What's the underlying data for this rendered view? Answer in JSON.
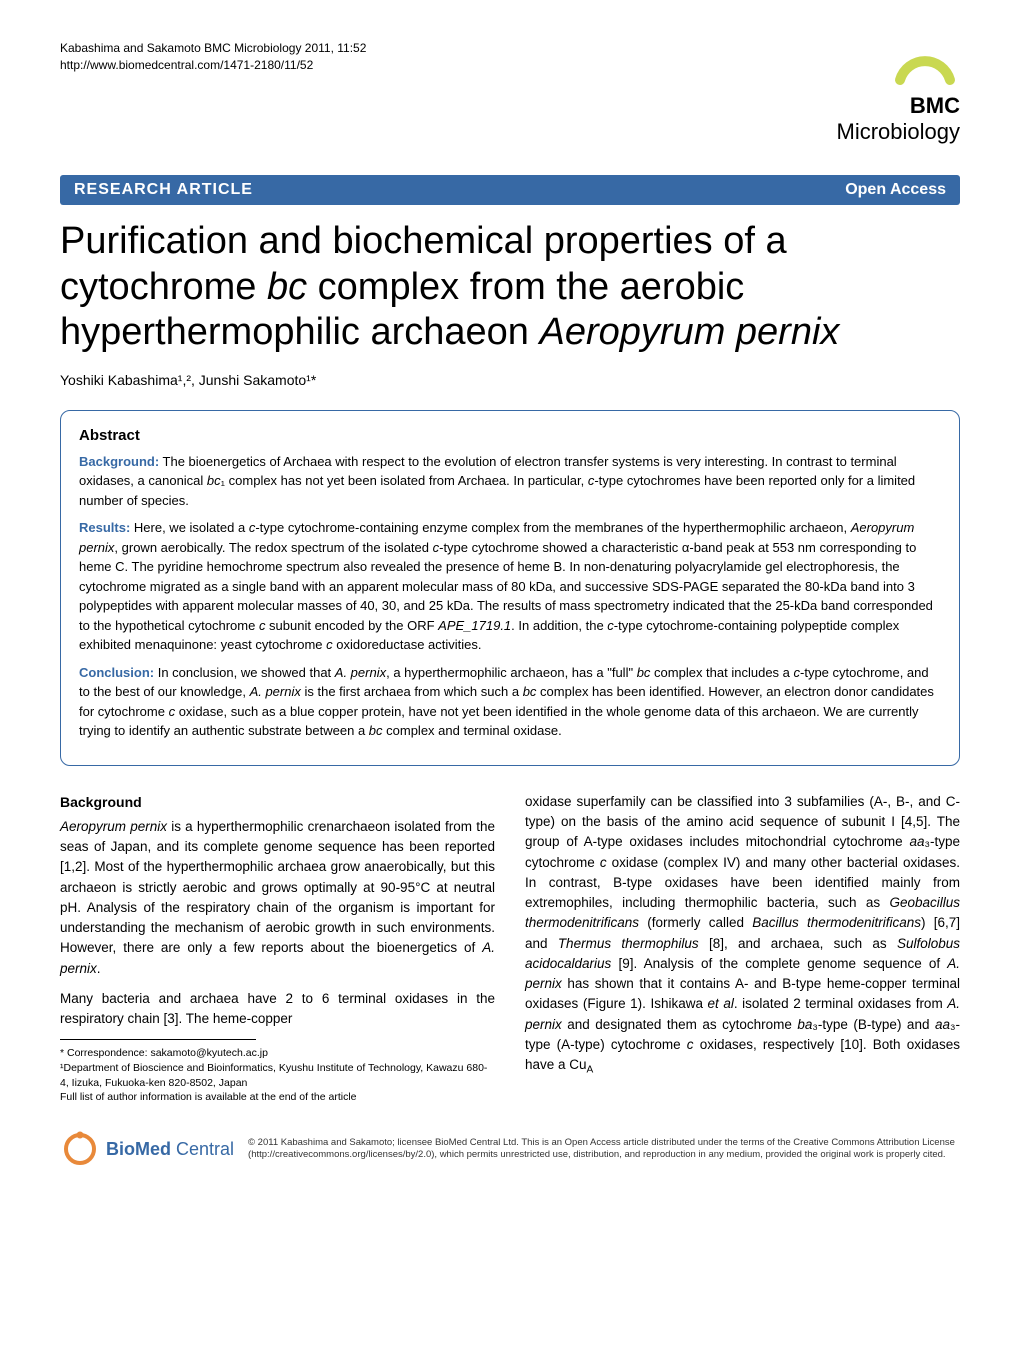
{
  "header": {
    "citation_line1": "Kabashima and Sakamoto BMC Microbiology 2011, 11:52",
    "citation_line2": "http://www.biomedcentral.com/1471-2180/11/52",
    "logo_prefix": "BMC",
    "logo_journal": "Microbiology",
    "logo_colors": {
      "arc": "#c9d851",
      "text": "#000000"
    }
  },
  "bar": {
    "article_type": "RESEARCH ARTICLE",
    "open_access": "Open Access",
    "background": "#3769a5",
    "text_color": "#ffffff"
  },
  "title": {
    "text_html": "Purification and biochemical properties of a cytochrome <span class='italic'>bc</span> complex from the aerobic hyperthermophilic archaeon <span class='italic'>Aeropyrum pernix</span>",
    "fontsize": 38
  },
  "authors": "Yoshiki Kabashima¹,², Junshi Sakamoto¹*",
  "abstract": {
    "heading": "Abstract",
    "border_color": "#3769a5",
    "label_color": "#3769a5",
    "sections": [
      {
        "label": "Background:",
        "html": "The bioenergetics of Archaea with respect to the evolution of electron transfer systems is very interesting. In contrast to terminal oxidases, a canonical <span class='italic'>bc</span>₁ complex has not yet been isolated from Archaea. In particular, <span class='italic'>c</span>-type cytochromes have been reported only for a limited number of species."
      },
      {
        "label": "Results:",
        "html": "Here, we isolated a <span class='italic'>c</span>-type cytochrome-containing enzyme complex from the membranes of the hyperthermophilic archaeon, <span class='italic'>Aeropyrum pernix</span>, grown aerobically. The redox spectrum of the isolated <span class='italic'>c</span>-type cytochrome showed a characteristic α-band peak at 553 nm corresponding to heme C. The pyridine hemochrome spectrum also revealed the presence of heme B. In non-denaturing polyacrylamide gel electrophoresis, the cytochrome migrated as a single band with an apparent molecular mass of 80 kDa, and successive SDS-PAGE separated the 80-kDa band into 3 polypeptides with apparent molecular masses of 40, 30, and 25 kDa. The results of mass spectrometry indicated that the 25-kDa band corresponded to the hypothetical cytochrome <span class='italic'>c</span> subunit encoded by the ORF <span class='italic'>APE_1719.1</span>. In addition, the <span class='italic'>c</span>-type cytochrome-containing polypeptide complex exhibited menaquinone: yeast cytochrome <span class='italic'>c</span> oxidoreductase activities."
      },
      {
        "label": "Conclusion:",
        "html": "In conclusion, we showed that <span class='italic'>A. pernix</span>, a hyperthermophilic archaeon, has a \"full\" <span class='italic'>bc</span> complex that includes a <span class='italic'>c</span>-type cytochrome, and to the best of our knowledge, <span class='italic'>A. pernix</span> is the first archaea from which such a <span class='italic'>bc</span> complex has been identified. However, an electron donor candidates for cytochrome <span class='italic'>c</span> oxidase, such as a blue copper protein, have not yet been identified in the whole genome data of this archaeon. We are currently trying to identify an authentic substrate between a <span class='italic'>bc</span> complex and terminal oxidase."
      }
    ]
  },
  "body": {
    "section_heading": "Background",
    "left_col_html": "<p><span class='italic'>Aeropyrum pernix</span> is a hyperthermophilic crenarchaeon isolated from the seas of Japan, and its complete genome sequence has been reported [1,2]. Most of the hyperthermophilic archaea grow anaerobically, but this archaeon is strictly aerobic and grows optimally at 90-95°C at neutral pH. Analysis of the respiratory chain of the organism is important for understanding the mechanism of aerobic growth in such environments. However, there are only a few reports about the bioenergetics of <span class='italic'>A. pernix</span>.</p><p>Many bacteria and archaea have 2 to 6 terminal oxidases in the respiratory chain [3]. The heme-copper</p>",
    "right_col_html": "<p>oxidase superfamily can be classified into 3 subfamilies (A-, B-, and C-type) on the basis of the amino acid sequence of subunit I [4,5]. The group of A-type oxidases includes mitochondrial cytochrome <span class='italic'>aa</span>₃-type cytochrome <span class='italic'>c</span> oxidase (complex IV) and many other bacterial oxidases. In contrast, B-type oxidases have been identified mainly from extremophiles, including thermophilic bacteria, such as <span class='italic'>Geobacillus thermodenitrificans</span> (formerly called <span class='italic'>Bacillus thermodenitrificans</span>) [6,7] and <span class='italic'>Thermus thermophilus</span> [8], and archaea, such as <span class='italic'>Sulfolobus acidocaldarius</span> [9]. Analysis of the complete genome sequence of <span class='italic'>A. pernix</span> has shown that it contains A- and B-type heme-copper terminal oxidases (Figure 1). Ishikawa <span class='italic'>et al</span>. isolated 2 terminal oxidases from <span class='italic'>A. pernix</span> and designated them as cytochrome <span class='italic'>ba</span>₃-type (B-type) and <span class='italic'>aa</span>₃-type (A-type) cytochrome <span class='italic'>c</span> oxidases, respectively [10]. Both oxidases have a Cu<sub>A</sub></p>"
  },
  "correspondence": {
    "line1": "* Correspondence: sakamoto@kyutech.ac.jp",
    "line2": "¹Department of Bioscience and Bioinformatics, Kyushu Institute of Technology, Kawazu 680-4, Iizuka, Fukuoka-ken 820-8502, Japan",
    "line3": "Full list of author information is available at the end of the article"
  },
  "license": {
    "logo_text_bold": "BioMed",
    "logo_text_thin": " Central",
    "logo_color": "#3769a5",
    "ring_color": "#e8893a",
    "text": "© 2011 Kabashima and Sakamoto; licensee BioMed Central Ltd. This is an Open Access article distributed under the terms of the Creative Commons Attribution License (http://creativecommons.org/licenses/by/2.0), which permits unrestricted use, distribution, and reproduction in any medium, provided the original work is properly cited."
  }
}
